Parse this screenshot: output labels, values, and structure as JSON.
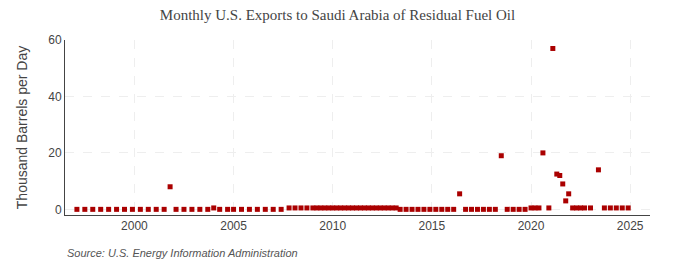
{
  "chart_data": {
    "type": "scatter",
    "title": "Monthly U.S. Exports to Saudi Arabia of Residual Fuel Oil",
    "y_label": "Thousand Barrels per Day",
    "annotations": [
      "Source: U.S. Energy Information Administration"
    ],
    "color": "#aa0000",
    "marker": "square",
    "grid": true,
    "xlim": [
      1996.5,
      2026
    ],
    "xticks": [
      2000,
      2005,
      2010,
      2015,
      2020,
      2025
    ],
    "ylim": [
      -2,
      60
    ],
    "yticks": [
      0,
      20,
      40,
      60
    ],
    "x": [
      1997.1,
      1997.5,
      1997.9,
      1998.3,
      1998.7,
      1999.1,
      1999.5,
      1999.9,
      2000.3,
      2000.7,
      2001.1,
      2001.5,
      2001.8,
      2002.1,
      2002.5,
      2002.9,
      2003.3,
      2003.7,
      2004.0,
      2004.3,
      2004.7,
      2005.0,
      2005.4,
      2005.8,
      2006.2,
      2006.6,
      2007.0,
      2007.4,
      2007.8,
      2008.1,
      2008.4,
      2008.7,
      2009.0,
      2009.2,
      2009.4,
      2009.6,
      2009.8,
      2010.0,
      2010.2,
      2010.4,
      2010.6,
      2010.8,
      2011.0,
      2011.2,
      2011.4,
      2011.6,
      2011.8,
      2012.0,
      2012.2,
      2012.4,
      2012.6,
      2012.8,
      2013.0,
      2013.2,
      2013.4,
      2013.7,
      2014.0,
      2014.3,
      2014.6,
      2014.9,
      2015.2,
      2015.5,
      2015.8,
      2016.1,
      2016.4,
      2016.7,
      2017.0,
      2017.3,
      2017.6,
      2017.9,
      2018.2,
      2018.5,
      2018.8,
      2019.1,
      2019.4,
      2019.7,
      2020.0,
      2020.2,
      2020.4,
      2020.6,
      2020.9,
      2021.1,
      2021.3,
      2021.45,
      2021.6,
      2021.75,
      2021.9,
      2022.1,
      2022.3,
      2022.5,
      2022.7,
      2023.0,
      2023.4,
      2023.7,
      2024.0,
      2024.3,
      2024.6,
      2024.9
    ],
    "values": [
      0,
      0,
      0,
      0,
      0,
      0,
      0,
      0,
      0,
      0,
      0,
      0,
      8,
      0,
      0,
      0,
      0,
      0,
      0.5,
      0,
      0,
      0,
      0,
      0,
      0,
      0,
      0,
      0,
      0.5,
      0.5,
      0.5,
      0.5,
      0.5,
      0.5,
      0.5,
      0.5,
      0.5,
      0.5,
      0.5,
      0.5,
      0.5,
      0.5,
      0.5,
      0.5,
      0.5,
      0.5,
      0.5,
      0.5,
      0.5,
      0.5,
      0.5,
      0.5,
      0.5,
      0.5,
      0,
      0,
      0,
      0,
      0,
      0,
      0,
      0,
      0,
      0,
      5.5,
      0,
      0,
      0,
      0,
      0,
      0,
      19,
      0,
      0,
      0,
      0,
      0.5,
      0.5,
      0.5,
      20,
      0.5,
      57,
      12.5,
      12,
      9,
      3,
      5.5,
      0.5,
      0.5,
      0.5,
      0.5,
      0.5,
      14,
      0.5,
      0.5,
      0.5,
      0.5,
      0.5
    ]
  }
}
